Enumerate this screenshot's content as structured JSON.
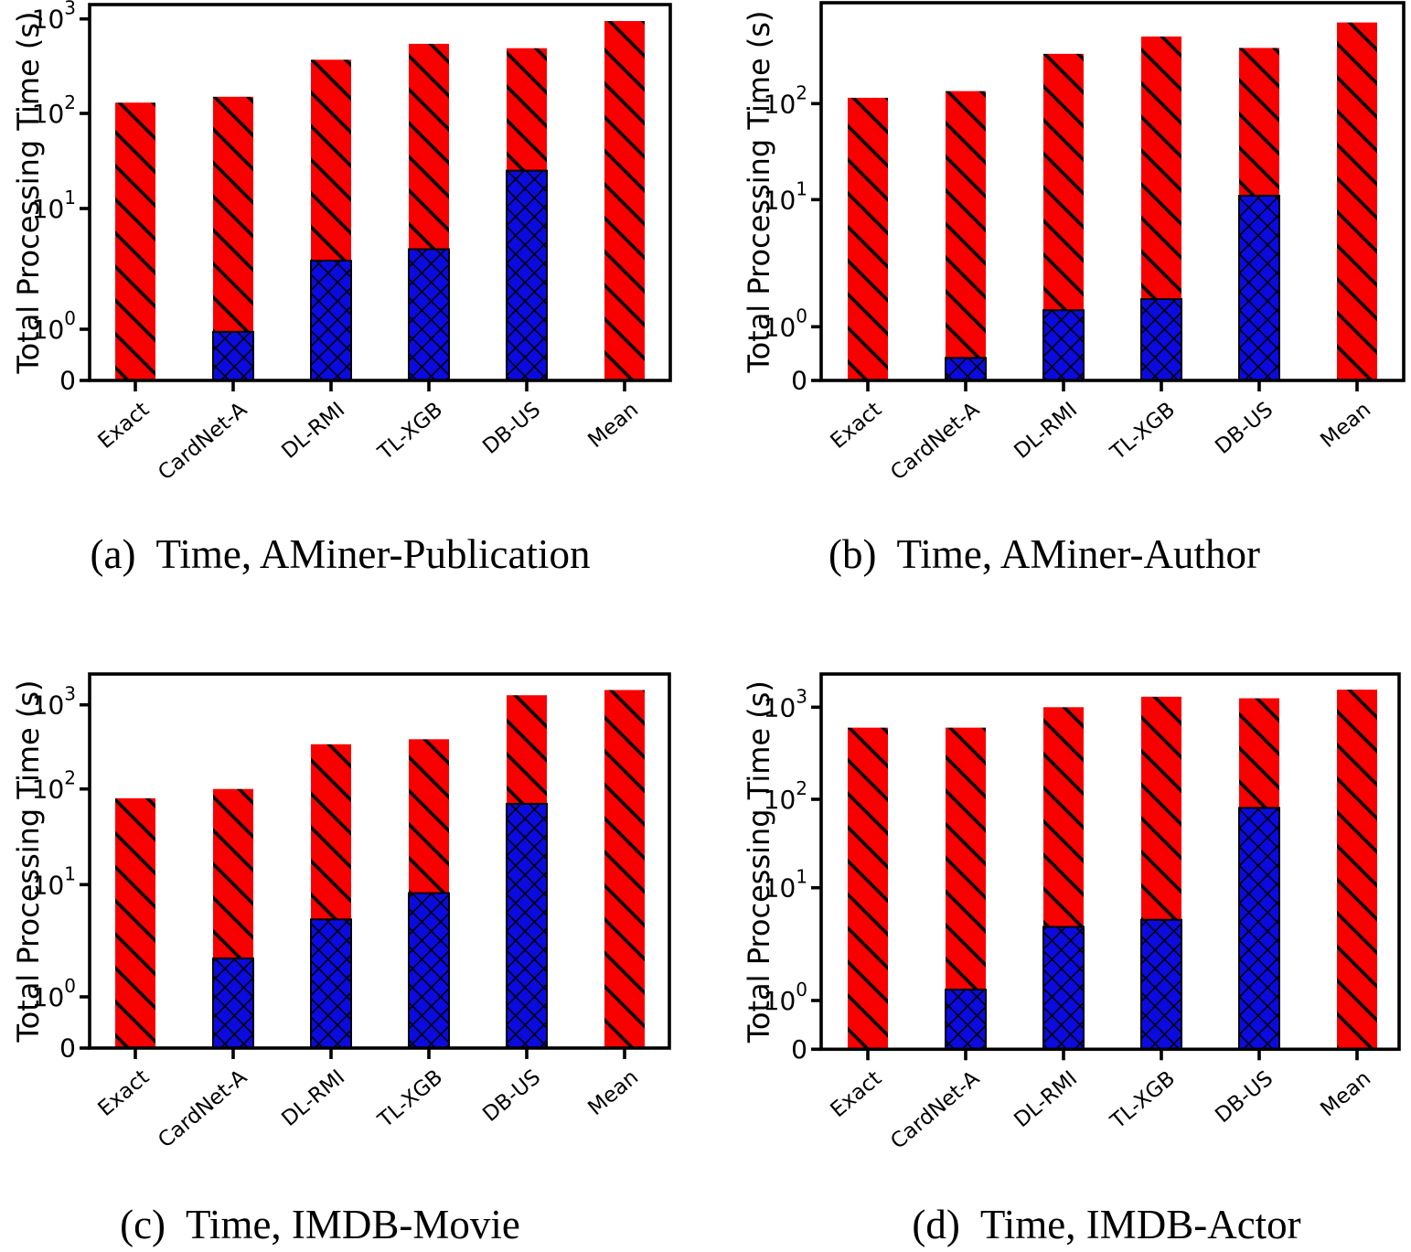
{
  "figure": {
    "background": "#ffffff",
    "ylabel": "Total Processing Time (s)",
    "categories": [
      "Exact",
      "CardNet-A",
      "DL-RMI",
      "TL-XGB",
      "DB-US",
      "Mean"
    ],
    "colors": {
      "bar_red": "#f80000",
      "bar_blue": "#0b0be0",
      "hatch": "#000000",
      "axis": "#000000",
      "text": "#000000"
    }
  },
  "chart_data": [
    {
      "type": "bar",
      "stacked": true,
      "yscale": "symlog",
      "caption": {
        "label": "(a)",
        "text": "Time, AMiner-Publication"
      },
      "ylabel": "Total Processing Time (s)",
      "categories": [
        "Exact",
        "CardNet-A",
        "DL-RMI",
        "TL-XGB",
        "DB-US",
        "Mean"
      ],
      "series": [
        {
          "name": "bottom segment (blue crosshatch)",
          "values": [
            0,
            0.95,
            3.7,
            4.6,
            25,
            0
          ]
        },
        {
          "name": "top segment (red diagonal)",
          "values": [
            130,
            149,
            366,
            540,
            465,
            950
          ]
        }
      ],
      "totals": [
        130,
        150,
        370,
        545,
        490,
        950
      ],
      "yticks": [
        0,
        1,
        10,
        100,
        1000
      ],
      "ytick_labels": [
        "0",
        "10⁰",
        "10¹",
        "10²",
        "10³"
      ],
      "ylim": [
        0,
        1400
      ],
      "legend": "none",
      "grid": false
    },
    {
      "type": "bar",
      "stacked": true,
      "yscale": "symlog",
      "caption": {
        "label": "(b)",
        "text": "Time, AMiner-Author"
      },
      "ylabel": "Total Processing Time (s)",
      "categories": [
        "Exact",
        "CardNet-A",
        "DL-RMI",
        "TL-XGB",
        "DB-US",
        "Mean"
      ],
      "series": [
        {
          "name": "bottom segment (blue crosshatch)",
          "values": [
            0,
            0.42,
            1.35,
            1.65,
            11,
            0
          ]
        },
        {
          "name": "top segment (red diagonal)",
          "values": [
            115,
            135,
            329,
            498,
            369,
            700
          ]
        }
      ],
      "totals": [
        115,
        135,
        330,
        500,
        380,
        700
      ],
      "yticks": [
        0,
        1,
        10,
        100
      ],
      "ytick_labels": [
        "0",
        "10⁰",
        "10¹",
        "10²"
      ],
      "ylim": [
        0,
        1100
      ],
      "legend": "none",
      "grid": false
    },
    {
      "type": "bar",
      "stacked": true,
      "yscale": "symlog",
      "caption": {
        "label": "(c)",
        "text": "Time, IMDB-Movie"
      },
      "ylabel": "Total Processing Time (s)",
      "categories": [
        "Exact",
        "CardNet-A",
        "DL-RMI",
        "TL-XGB",
        "DB-US",
        "Mean"
      ],
      "series": [
        {
          "name": "bottom segment (blue crosshatch)",
          "values": [
            0,
            2.2,
            4.9,
            8.4,
            70,
            0
          ]
        },
        {
          "name": "top segment (red diagonal)",
          "values": [
            80,
            98,
            335,
            382,
            1230,
            1500
          ]
        }
      ],
      "totals": [
        80,
        100,
        340,
        390,
        1300,
        1500
      ],
      "yticks": [
        0,
        1,
        10,
        100,
        1000
      ],
      "ytick_labels": [
        "0",
        "10⁰",
        "10¹",
        "10²",
        "10³"
      ],
      "ylim": [
        0,
        2300
      ],
      "legend": "none",
      "grid": false
    },
    {
      "type": "bar",
      "stacked": true,
      "yscale": "symlog",
      "caption": {
        "label": "(d)",
        "text": "Time, IMDB-Actor"
      },
      "ylabel": "Total Processing Time (s)",
      "categories": [
        "Exact",
        "CardNet-A",
        "DL-RMI",
        "TL-XGB",
        "DB-US",
        "Mean"
      ],
      "series": [
        {
          "name": "bottom segment (blue crosshatch)",
          "values": [
            0,
            1.25,
            4.5,
            5.2,
            80,
            0
          ]
        },
        {
          "name": "top segment (red diagonal)",
          "values": [
            600,
            599,
            996,
            1295,
            1170,
            1550
          ]
        }
      ],
      "totals": [
        600,
        600,
        1000,
        1300,
        1250,
        1550
      ],
      "yticks": [
        0,
        1,
        10,
        100,
        1000
      ],
      "ytick_labels": [
        "0",
        "10⁰",
        "10¹",
        "10²",
        "10³"
      ],
      "ylim": [
        0,
        2300
      ],
      "legend": "none",
      "grid": false
    }
  ]
}
